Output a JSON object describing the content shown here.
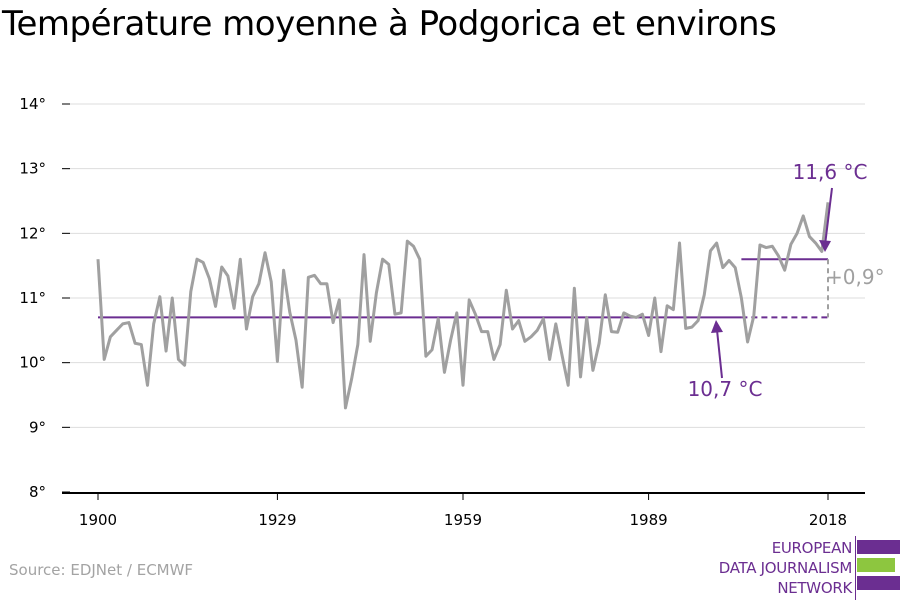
{
  "title": "Température moyenne à Podgorica et environs",
  "source": "Source: EDJNet / ECMWF",
  "logo": {
    "lines": [
      "EUROPEAN",
      "DATA JOURNALISM",
      "NETWORK"
    ],
    "colors": {
      "purple": "#6b2e91",
      "green": "#8dc63f"
    }
  },
  "colors": {
    "series": "#a0a0a0",
    "mean": "#6b2e91",
    "diff": "#a0a0a0",
    "grid": "#dddddd",
    "axis": "#000000"
  },
  "chart_data": {
    "type": "line",
    "title": "Température moyenne à Podgorica et environs",
    "xlabel": "",
    "ylabel": "",
    "xlim": [
      1900,
      2018
    ],
    "ylim": [
      8,
      14
    ],
    "x_ticks": [
      1900,
      1929,
      1959,
      1989,
      2018
    ],
    "y_ticks": [
      8,
      9,
      10,
      11,
      12,
      13,
      14
    ],
    "y_tick_labels": [
      "8°",
      "9°",
      "10°",
      "11°",
      "12°",
      "13°",
      "14°"
    ],
    "grid": "horizontal",
    "series": [
      {
        "values_x_start": 1900,
        "y": [
          11.6,
          10.05,
          10.4,
          10.5,
          10.6,
          10.62,
          10.3,
          10.28,
          9.65,
          10.6,
          11.02,
          10.18,
          11.0,
          10.05,
          9.96,
          11.1,
          11.6,
          11.55,
          11.3,
          10.87,
          11.48,
          11.34,
          10.84,
          11.6,
          10.52,
          11.02,
          11.22,
          11.7,
          11.25,
          10.02,
          11.43,
          10.78,
          10.35,
          9.62,
          11.32,
          11.35,
          11.22,
          11.22,
          10.62,
          10.97,
          9.3,
          9.75,
          10.28,
          11.67,
          10.33,
          11.08,
          11.6,
          11.52,
          10.75,
          10.77,
          11.88,
          11.8,
          11.6,
          10.1,
          10.2,
          10.68,
          9.85,
          10.35,
          10.77,
          9.65,
          10.97,
          10.75,
          10.48,
          10.48,
          10.05,
          10.28,
          11.12,
          10.52,
          10.65,
          10.33,
          10.4,
          10.5,
          10.68,
          10.05,
          10.6,
          10.12,
          9.65,
          11.15,
          9.78,
          10.7,
          9.88,
          10.3,
          11.05,
          10.48,
          10.47,
          10.77,
          10.72,
          10.7,
          10.75,
          10.42,
          11.0,
          10.17,
          10.88,
          10.82,
          11.85,
          10.53,
          10.55,
          10.65,
          11.05,
          11.73,
          11.85,
          11.47,
          11.58,
          11.47,
          11.0,
          10.32,
          10.72,
          11.82,
          11.78,
          11.8,
          11.65,
          11.43,
          11.83,
          12.0,
          12.27,
          11.95,
          11.85,
          11.72,
          12.48
        ]
      }
    ],
    "reference_lines": [
      {
        "label": "10,7 °C",
        "value": 10.7,
        "x_from": 1900,
        "x_to": 2018
      },
      {
        "label": "11,6 °C",
        "value": 11.6,
        "x_from": 2004,
        "x_to": 2018
      }
    ],
    "annotations": [
      {
        "text": "11,6 °C",
        "color": "#6b2e91"
      },
      {
        "text": "10,7 °C",
        "color": "#6b2e91"
      },
      {
        "text": "+0,9°",
        "color": "#a0a0a0"
      }
    ]
  }
}
